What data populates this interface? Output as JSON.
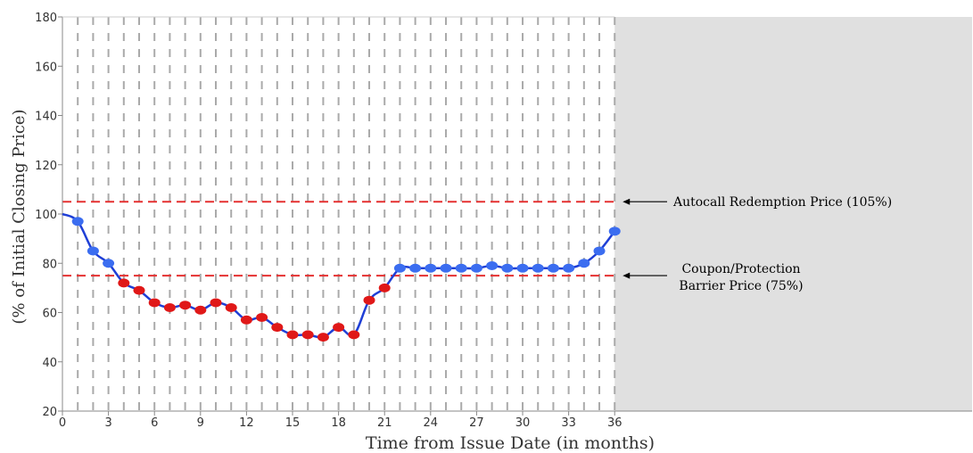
{
  "chart_data": {
    "type": "line",
    "xlabel": "Time from Issue Date (in months)",
    "ylabel": "(% of Initial Closing Price)",
    "xlim": [
      0,
      59.3
    ],
    "ylim": [
      20,
      180
    ],
    "x_ticks": [
      0,
      3,
      6,
      9,
      12,
      15,
      18,
      21,
      24,
      27,
      30,
      33,
      36
    ],
    "y_ticks": [
      20,
      40,
      60,
      80,
      100,
      120,
      140,
      160,
      180
    ],
    "observation_months": [
      1,
      2,
      3,
      4,
      5,
      6,
      7,
      8,
      9,
      10,
      11,
      12,
      13,
      14,
      15,
      16,
      17,
      18,
      19,
      20,
      21,
      22,
      23,
      24,
      25,
      26,
      27,
      28,
      29,
      30,
      31,
      32,
      33,
      34,
      35,
      36
    ],
    "shaded_region_x": [
      36,
      59.3
    ],
    "grid": false,
    "thresholds": [
      {
        "value": 105,
        "label": "Autocall Redemption Price (105%)"
      },
      {
        "value": 75,
        "label_lines": [
          "Coupon/Protection",
          "Barrier Price (75%)"
        ]
      }
    ],
    "colors": {
      "line": "#1f3fd6",
      "point_above_barrier": "#3b6df0",
      "point_below_barrier": "#e01818",
      "threshold": "#e53030",
      "vertical_dashes": "#aaaaaa",
      "shade": "#e0e0e0"
    },
    "series": [
      {
        "x": [
          0,
          1,
          2,
          3,
          4,
          5,
          6,
          7,
          8,
          9,
          10,
          11,
          12,
          13,
          14,
          15,
          16,
          17,
          18,
          19,
          20,
          21,
          22,
          23,
          24,
          25,
          26,
          27,
          28,
          29,
          30,
          31,
          32,
          33,
          34,
          35,
          36
        ],
        "values": [
          100,
          97,
          85,
          80,
          72,
          69,
          64,
          62,
          63,
          61,
          64,
          62,
          57,
          58,
          54,
          51,
          51,
          50,
          54,
          51,
          65,
          70,
          78,
          78,
          78,
          78,
          78,
          78,
          79,
          78,
          78,
          78,
          78,
          78,
          80,
          85,
          93
        ]
      }
    ]
  }
}
